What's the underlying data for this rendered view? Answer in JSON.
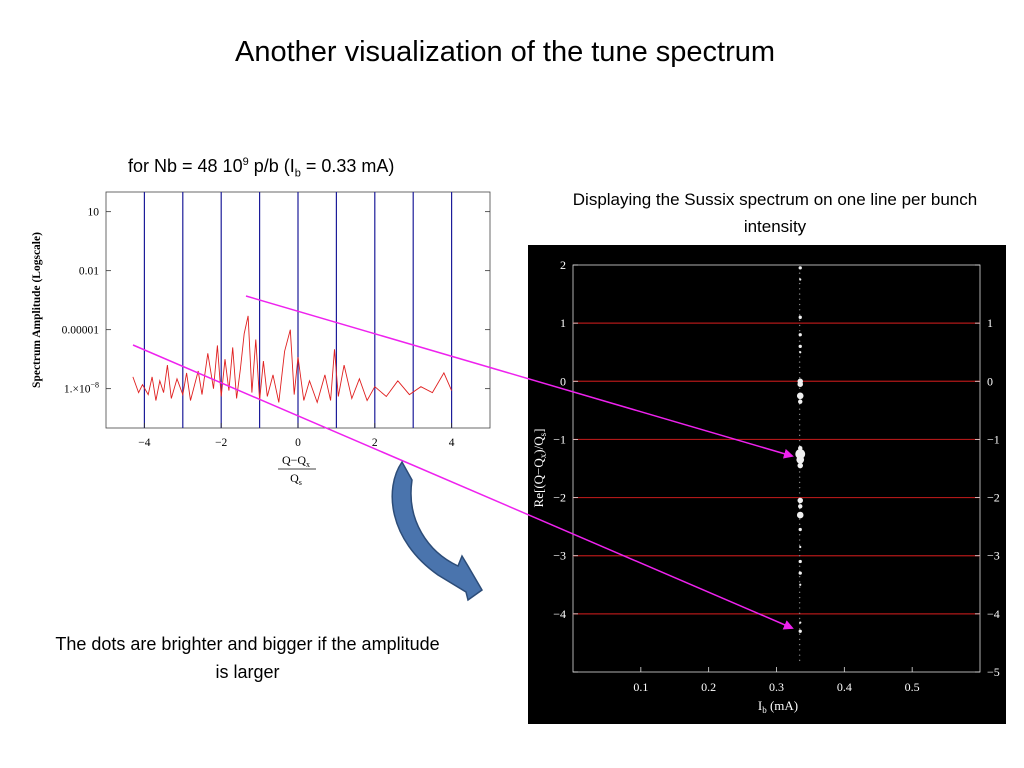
{
  "slide_title": "Another visualization of the tune spectrum",
  "left_subtitle": {
    "prefix": "for Nb = 48 10",
    "sup": "9",
    "middle": " p/b (I",
    "sub": "b",
    "suffix": " = 0.33 mA)"
  },
  "right_title": "Displaying the Sussix spectrum on one line per bunch intensity",
  "caption": "The dots are brighter and bigger if the amplitude is larger",
  "colors": {
    "spectrum_line": "#e02020",
    "vertical_lines": "#1c1c9a",
    "arrow": "#ee22ee",
    "red_lines": "#b01818",
    "curved_arrow": "#4a74ad",
    "right_bg": "#000000",
    "dots": "#f0f0f0"
  },
  "chart_data": [
    {
      "type": "line",
      "xlabel_num": "Q−Q",
      "xlabel_num_sub": "x",
      "xlabel_den": "Q",
      "xlabel_den_sub": "s",
      "ylabel": "Spectrum Amplitude (Logscale)",
      "xlim": [
        -5,
        5
      ],
      "ylim_log10": [
        -10,
        2
      ],
      "log_scale_y": true,
      "x_ticks": [
        -4,
        -2,
        0,
        2,
        4
      ],
      "x_tick_labels": [
        "−4",
        "−2",
        "0",
        "2",
        "4"
      ],
      "y_ticks_log10": [
        1,
        -2,
        -5,
        -8
      ],
      "y_tick_labels": [
        "10",
        "0.01",
        "0.00001",
        "1.×10"
      ],
      "y_tick_sup": [
        "",
        "",
        "",
        "−8"
      ],
      "vertical_lines": [
        -4,
        -3,
        -2,
        -1,
        0,
        1,
        2,
        3,
        4
      ],
      "series": [
        {
          "x": [
            -4.3,
            -4.15,
            -4.05,
            -3.9,
            -3.8,
            -3.7,
            -3.6,
            -3.5,
            -3.4,
            -3.3,
            -3.15,
            -3.0,
            -2.9,
            -2.8,
            -2.6,
            -2.5,
            -2.35,
            -2.2,
            -2.1,
            -2.0,
            -1.9,
            -1.8,
            -1.7,
            -1.6,
            -1.5,
            -1.4,
            -1.3,
            -1.2,
            -1.1,
            -1.0,
            -0.9,
            -0.8,
            -0.65,
            -0.5,
            -0.35,
            -0.2,
            -0.1,
            0.0,
            0.15,
            0.3,
            0.5,
            0.7,
            0.85,
            0.95,
            1.05,
            1.2,
            1.4,
            1.6,
            1.8,
            2.0,
            2.3,
            2.6,
            2.9,
            3.2,
            3.5,
            3.8,
            4.0
          ],
          "y_log10": [
            -7.4,
            -8.2,
            -7.8,
            -8.3,
            -7.4,
            -8.6,
            -7.6,
            -8.2,
            -6.8,
            -8.5,
            -7.5,
            -8.3,
            -7.2,
            -8.6,
            -7.1,
            -8.3,
            -6.2,
            -8.0,
            -5.8,
            -8.4,
            -6.5,
            -8.1,
            -5.9,
            -8.5,
            -7.0,
            -5.2,
            -4.3,
            -8.2,
            -5.5,
            -8.6,
            -6.6,
            -8.4,
            -7.3,
            -8.7,
            -6.1,
            -5.0,
            -8.3,
            -6.4,
            -8.6,
            -7.6,
            -8.7,
            -7.3,
            -8.6,
            -6.0,
            -8.4,
            -6.8,
            -8.5,
            -7.5,
            -8.6,
            -7.9,
            -8.4,
            -7.6,
            -8.3,
            -7.9,
            -8.2,
            -7.2,
            -8.1
          ]
        }
      ]
    },
    {
      "type": "scatter",
      "xlabel": "I",
      "xlabel_sub": "b",
      "xlabel_unit": "(mA)",
      "ylabel": "Re[(Q−Q",
      "ylabel_sub1": "x",
      "ylabel_mid": ")/Q",
      "ylabel_sub2": "s",
      "ylabel_end": "]",
      "xlim": [
        0,
        0.6
      ],
      "ylim": [
        -5,
        2
      ],
      "x_ticks": [
        0.1,
        0.2,
        0.3,
        0.4,
        0.5
      ],
      "x_tick_labels": [
        "0.1",
        "0.2",
        "0.3",
        "0.4",
        "0.5"
      ],
      "y_ticks": [
        2,
        1,
        0,
        -1,
        -2,
        -3,
        -4,
        -5
      ],
      "y_tick_labels_left": [
        "2",
        "1",
        "0",
        "−1",
        "−2",
        "−3",
        "−4",
        ""
      ],
      "y_tick_labels_right": [
        "",
        "1",
        "0",
        "−1",
        "−2",
        "−3",
        "−4",
        "−5"
      ],
      "red_lines": [
        1,
        0,
        -1,
        -2,
        -3,
        -4
      ],
      "points": {
        "x": [
          0.335,
          0.335,
          0.335,
          0.335,
          0.335,
          0.335,
          0.335,
          0.335,
          0.335,
          0.335,
          0.335,
          0.335,
          0.335,
          0.335,
          0.335,
          0.335,
          0.335,
          0.335,
          0.335,
          0.335,
          0.335,
          0.335,
          0.335,
          0.335
        ],
        "y": [
          1.95,
          1.75,
          1.1,
          0.8,
          0.6,
          0.5,
          0.0,
          -0.05,
          -0.25,
          -0.35,
          -1.25,
          -1.35,
          -1.45,
          -1.15,
          -2.05,
          -2.15,
          -2.3,
          -2.55,
          -2.85,
          -3.1,
          -3.3,
          -3.5,
          -4.15,
          -4.3
        ],
        "size": [
          3,
          2,
          3,
          3,
          3,
          2,
          5,
          5,
          6,
          4,
          9,
          7,
          5,
          4,
          5,
          4,
          6,
          3,
          2,
          3,
          3,
          2,
          2,
          3
        ]
      }
    }
  ]
}
